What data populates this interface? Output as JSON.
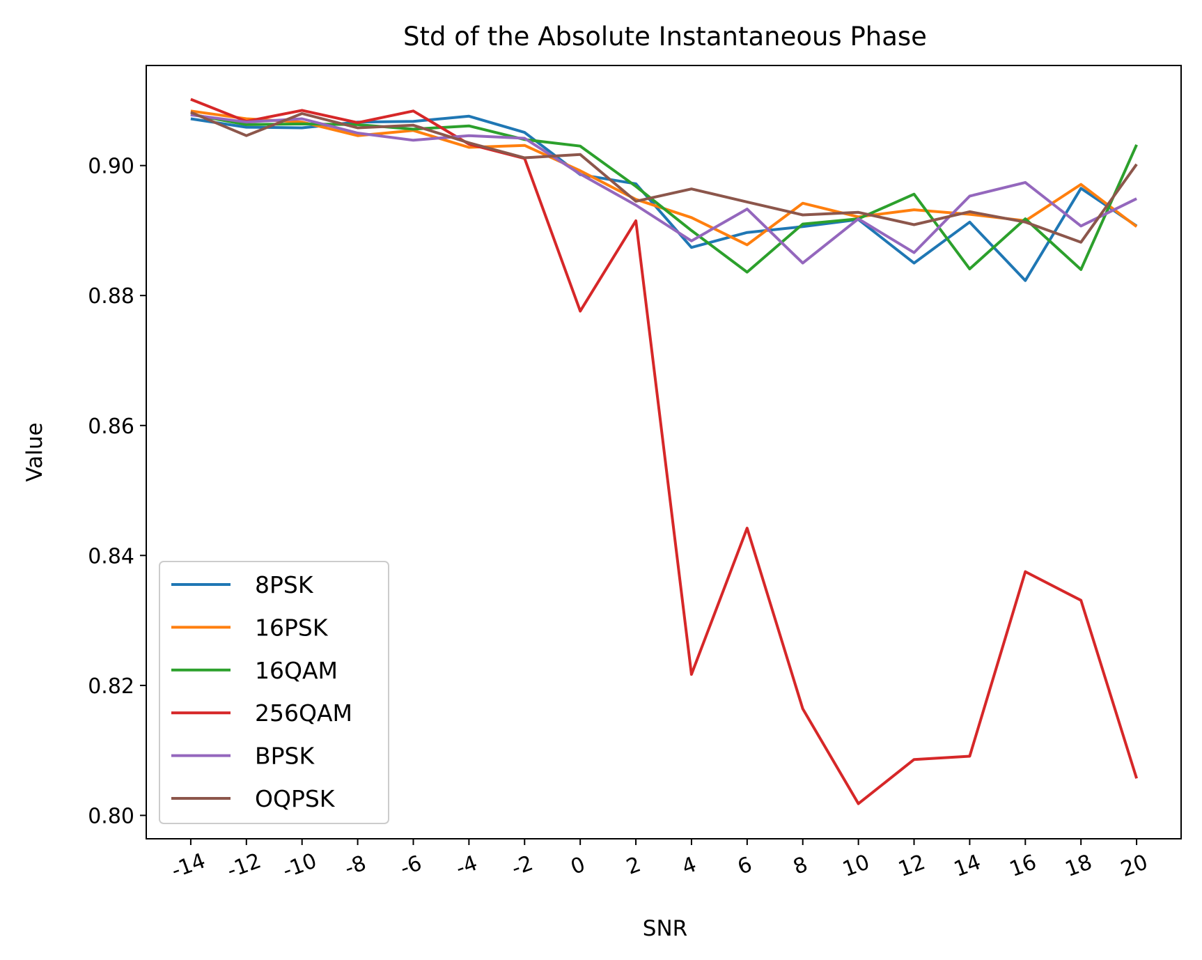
{
  "chart_data": {
    "type": "line",
    "title": "Std of the Absolute Instantaneous Phase",
    "xlabel": "SNR",
    "ylabel": "Value",
    "x": [
      -14,
      -12,
      -10,
      -8,
      -6,
      -4,
      -2,
      0,
      2,
      4,
      6,
      8,
      10,
      12,
      14,
      16,
      18,
      20
    ],
    "x_tick_labels": [
      "-14",
      "-12",
      "-10",
      "-8",
      "-6",
      "-4",
      "-2",
      "0",
      "2",
      "4",
      "6",
      "8",
      "10",
      "12",
      "14",
      "16",
      "18",
      "20"
    ],
    "y_ticks": [
      0.8,
      0.82,
      0.84,
      0.86,
      0.88,
      0.9
    ],
    "y_tick_labels": [
      "0.80",
      "0.82",
      "0.84",
      "0.86",
      "0.88",
      "0.90"
    ],
    "xlim": [
      -15.6,
      21.6
    ],
    "ylim": [
      0.7964,
      0.9154
    ],
    "grid": false,
    "legend_position": "lower-left",
    "series": [
      {
        "name": "8PSK",
        "color": "#1f77b4",
        "values": [
          0.9072,
          0.9059,
          0.9058,
          0.9067,
          0.9068,
          0.9076,
          0.9051,
          0.8986,
          0.8972,
          0.8874,
          0.8897,
          0.8906,
          0.8917,
          0.885,
          0.8913,
          0.8823,
          0.8965,
          0.8907
        ]
      },
      {
        "name": "16PSK",
        "color": "#ff7f0e",
        "values": [
          0.9084,
          0.9072,
          0.9067,
          0.9046,
          0.9054,
          0.9028,
          0.9031,
          0.8992,
          0.8948,
          0.892,
          0.8878,
          0.8942,
          0.8921,
          0.8932,
          0.8925,
          0.8915,
          0.8971,
          0.8906
        ]
      },
      {
        "name": "16QAM",
        "color": "#2ca02c",
        "values": [
          0.9079,
          0.9063,
          0.9064,
          0.9063,
          0.9056,
          0.9061,
          0.904,
          0.903,
          0.8968,
          0.89,
          0.8836,
          0.891,
          0.8918,
          0.8956,
          0.8841,
          0.8918,
          0.884,
          0.9032
        ]
      },
      {
        "name": "256QAM",
        "color": "#d62728",
        "values": [
          0.9102,
          0.9068,
          0.9085,
          0.9066,
          0.9084,
          0.9033,
          0.9011,
          0.8776,
          0.8915,
          0.8217,
          0.8442,
          0.8164,
          0.8018,
          0.8086,
          0.8091,
          0.8375,
          0.8331,
          0.8057
        ]
      },
      {
        "name": "BPSK",
        "color": "#9467bd",
        "values": [
          0.9078,
          0.9067,
          0.9072,
          0.905,
          0.9039,
          0.9046,
          0.9042,
          0.8987,
          0.8939,
          0.8884,
          0.8933,
          0.885,
          0.8918,
          0.8866,
          0.8953,
          0.8974,
          0.8907,
          0.8949
        ]
      },
      {
        "name": "OQPSK",
        "color": "#8c564b",
        "values": [
          0.9082,
          0.9046,
          0.908,
          0.9058,
          0.9062,
          0.9035,
          0.9012,
          0.9017,
          0.8945,
          0.8964,
          0.8944,
          0.8924,
          0.8928,
          0.8909,
          0.8929,
          0.8913,
          0.8882,
          0.9002
        ]
      }
    ]
  }
}
